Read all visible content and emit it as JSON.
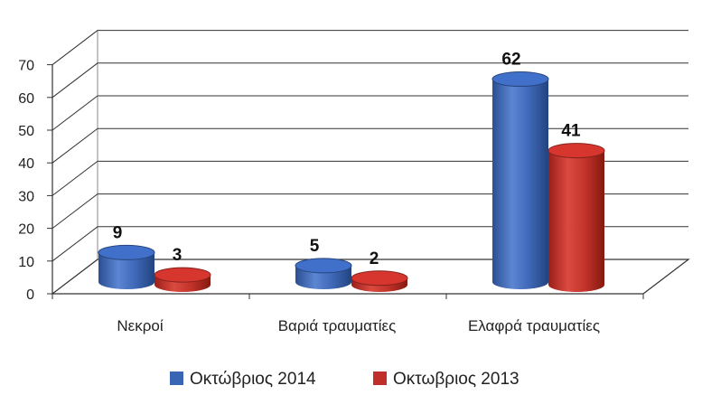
{
  "chart_data": {
    "type": "bar",
    "style": "3d-cylinder",
    "categories": [
      "Νεκροί",
      "Βαριά τραυματίες",
      "Ελαφρά τραυματίες"
    ],
    "series": [
      {
        "name": "Οκτώβριος 2014",
        "values": [
          9,
          5,
          62
        ],
        "color": "#3A64B4"
      },
      {
        "name": "Οκτωβριος 2013",
        "values": [
          3,
          2,
          41
        ],
        "color": "#C0302A"
      }
    ],
    "ylim": [
      0,
      70
    ],
    "yticks": [
      "0",
      "10",
      "20",
      "30",
      "40",
      "50",
      "60",
      "70"
    ],
    "grid": true,
    "legend_position": "bottom"
  }
}
